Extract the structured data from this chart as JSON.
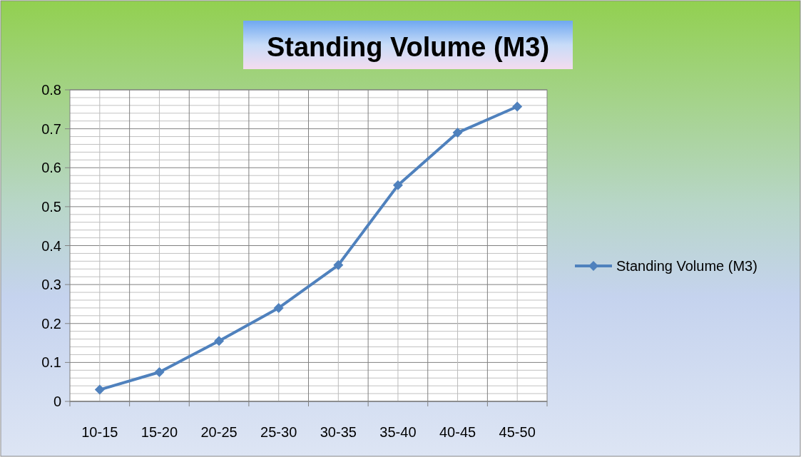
{
  "chart_data": {
    "type": "line",
    "title": "Standing Volume (M3)",
    "categories": [
      "10-15",
      "15-20",
      "20-25",
      "25-30",
      "30-35",
      "35-40",
      "40-45",
      "45-50"
    ],
    "series": [
      {
        "name": "Standing Volume (M3)",
        "color": "#4f81bd",
        "values": [
          0.03,
          0.075,
          0.155,
          0.24,
          0.35,
          0.555,
          0.69,
          0.757
        ]
      }
    ],
    "ylim": [
      0,
      0.8
    ],
    "yticks": [
      0,
      0.1,
      0.2,
      0.3,
      0.4,
      0.5,
      0.6,
      0.7,
      0.8
    ],
    "grid": true,
    "legend": "right",
    "marker": "diamond",
    "line_style": "solid"
  }
}
